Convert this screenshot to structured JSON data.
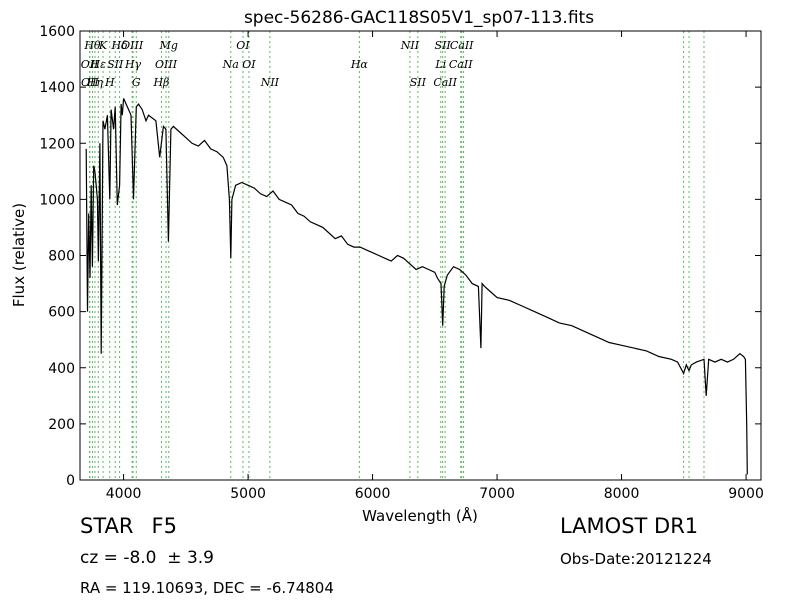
{
  "chart_data": {
    "type": "line",
    "title": "spec-56286-GAC118S05V1_sp07-113.fits",
    "xlabel": "Wavelength (Å)",
    "ylabel": "Flux (relative)",
    "xlim": [
      3650,
      9120
    ],
    "ylim": [
      0,
      1600
    ],
    "xticks": [
      4000,
      5000,
      6000,
      7000,
      8000,
      9000
    ],
    "yticks": [
      0,
      200,
      400,
      600,
      800,
      1000,
      1200,
      1400,
      1600
    ],
    "grid": false,
    "legend": "none",
    "series_color": "#000000",
    "line_marker_color": "#5cb85c",
    "x": [
      3700,
      3710,
      3720,
      3730,
      3740,
      3750,
      3760,
      3770,
      3780,
      3790,
      3798,
      3810,
      3820,
      3835,
      3850,
      3870,
      3889,
      3900,
      3920,
      3933,
      3950,
      3968,
      3980,
      3990,
      4000,
      4020,
      4040,
      4060,
      4080,
      4102,
      4120,
      4150,
      4180,
      4200,
      4230,
      4260,
      4290,
      4320,
      4340,
      4360,
      4380,
      4400,
      4450,
      4500,
      4550,
      4600,
      4650,
      4700,
      4750,
      4800,
      4830,
      4850,
      4861,
      4870,
      4900,
      4950,
      5000,
      5050,
      5100,
      5150,
      5200,
      5250,
      5300,
      5350,
      5400,
      5450,
      5500,
      5550,
      5600,
      5650,
      5700,
      5750,
      5800,
      5850,
      5900,
      5950,
      6000,
      6050,
      6100,
      6150,
      6200,
      6250,
      6300,
      6350,
      6400,
      6450,
      6500,
      6520,
      6550,
      6563,
      6575,
      6600,
      6650,
      6700,
      6750,
      6800,
      6850,
      6870,
      6880,
      6900,
      6950,
      7000,
      7100,
      7200,
      7300,
      7400,
      7500,
      7600,
      7700,
      7800,
      7900,
      8000,
      8100,
      8200,
      8300,
      8400,
      8450,
      8498,
      8520,
      8542,
      8560,
      8600,
      8662,
      8680,
      8700,
      8750,
      8800,
      8850,
      8900,
      8950,
      8980,
      8995,
      9005,
      9010
    ],
    "values": [
      1180,
      600,
      950,
      720,
      1050,
      760,
      1120,
      1100,
      1050,
      1000,
      780,
      1200,
      450,
      1280,
      1250,
      1300,
      1000,
      1320,
      1250,
      1330,
      980,
      1050,
      1340,
      1300,
      1360,
      1340,
      1320,
      1300,
      1000,
      1330,
      1340,
      1320,
      1280,
      1300,
      1290,
      1280,
      1150,
      1260,
      1250,
      850,
      1250,
      1260,
      1240,
      1220,
      1200,
      1190,
      1210,
      1180,
      1170,
      1150,
      1120,
      1000,
      790,
      1000,
      1050,
      1060,
      1050,
      1040,
      1020,
      1010,
      1030,
      1000,
      990,
      980,
      950,
      940,
      920,
      910,
      900,
      880,
      860,
      870,
      840,
      830,
      830,
      820,
      810,
      800,
      790,
      780,
      800,
      790,
      770,
      750,
      760,
      750,
      740,
      720,
      700,
      550,
      690,
      730,
      760,
      750,
      730,
      700,
      690,
      470,
      700,
      690,
      670,
      650,
      640,
      620,
      600,
      580,
      560,
      550,
      530,
      510,
      490,
      480,
      470,
      460,
      440,
      430,
      420,
      380,
      410,
      390,
      410,
      420,
      430,
      300,
      430,
      420,
      430,
      420,
      430,
      450,
      440,
      430,
      200,
      20
    ],
    "lines": [
      {
        "label": "OII",
        "x": 3727,
        "row": 1
      },
      {
        "label": "OII",
        "x": 3729,
        "row": 2
      },
      {
        "label": "Hθ",
        "x": 3750,
        "row": 0
      },
      {
        "label": "Hη",
        "x": 3770,
        "row": 2
      },
      {
        "label": "Hε",
        "x": 3797,
        "row": 1
      },
      {
        "label": "K",
        "x": 3835,
        "row": 0
      },
      {
        "label": "H",
        "x": 3889,
        "row": 2
      },
      {
        "label": "SII",
        "x": 3933,
        "row": 1
      },
      {
        "label": "Hδ",
        "x": 3968,
        "row": 0
      },
      {
        "label": "OIII",
        "x": 4069,
        "row": 0
      },
      {
        "label": "Hγ",
        "x": 4076,
        "row": 1
      },
      {
        "label": "G",
        "x": 4102,
        "row": 2
      },
      {
        "label": "Hβ",
        "x": 4304,
        "row": 2
      },
      {
        "label": "OIII",
        "x": 4341,
        "row": 1
      },
      {
        "label": "Mg",
        "x": 4363,
        "row": 0
      },
      {
        "label": "Na",
        "x": 4861,
        "row": 1
      },
      {
        "label": "OI",
        "x": 4959,
        "row": 0
      },
      {
        "label": "OI",
        "x": 5007,
        "row": 1
      },
      {
        "label": "NII",
        "x": 5175,
        "row": 2
      },
      {
        "label": "Hα",
        "x": 5894,
        "row": 1
      },
      {
        "label": "NII",
        "x": 6300,
        "row": 0
      },
      {
        "label": "SII",
        "x": 6364,
        "row": 2
      },
      {
        "label": "Li",
        "x": 6548,
        "row": 1
      },
      {
        "label": "SII",
        "x": 6563,
        "row": 0
      },
      {
        "label": "CaII",
        "x": 6583,
        "row": 2
      },
      {
        "label": "CaII",
        "x": 6708,
        "row": 1
      },
      {
        "label": "CaII",
        "x": 6716,
        "row": 0
      },
      {
        "label": "",
        "x": 6731,
        "row": 2
      },
      {
        "label": "",
        "x": 8498,
        "row": 1
      },
      {
        "label": "",
        "x": 8542,
        "row": 0
      },
      {
        "label": "",
        "x": 8662,
        "row": 2
      }
    ]
  },
  "info": {
    "class_text": "STAR",
    "subclass_text": "F5",
    "cz_text": "cz = -8.0  ± 3.9",
    "radec_text": "RA = 119.10693, DEC = -6.74804",
    "survey_text": "LAMOST DR1",
    "obs_text": "Obs-Date:20121224"
  }
}
